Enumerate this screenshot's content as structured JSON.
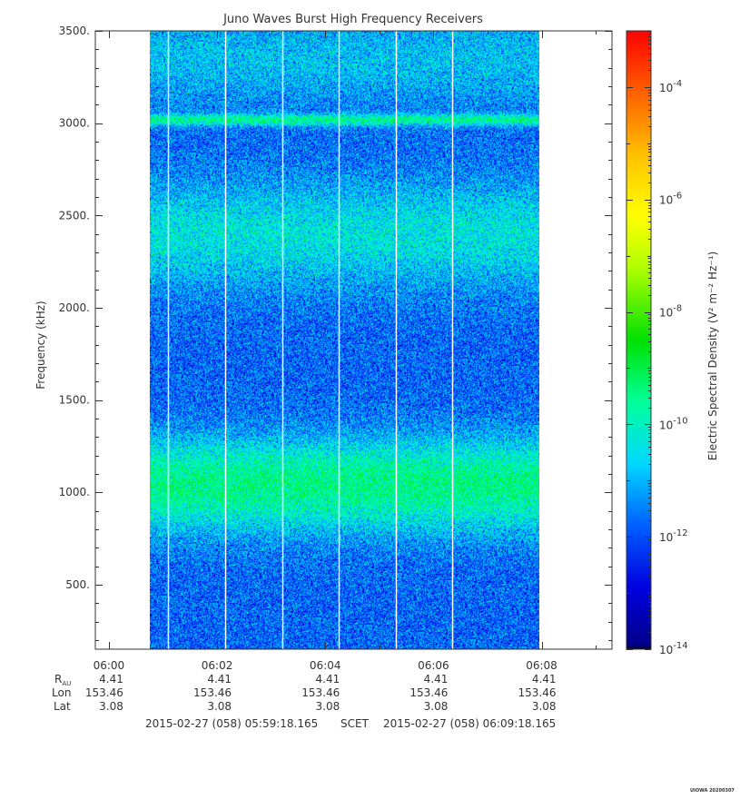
{
  "chart_data": {
    "type": "heatmap",
    "title": "Juno Waves Burst High Frequency Receivers",
    "xlabel": "",
    "ylabel": "Frequency (kHz)",
    "colorbar_label": "Electric Spectral Density (V² m⁻² Hz⁻¹)",
    "x_ticks": [
      "06:00",
      "06:02",
      "06:04",
      "06:06",
      "06:08"
    ],
    "x_range_minutes": [
      -0.25,
      9.3
    ],
    "ylim": [
      150,
      3500
    ],
    "y_ticks": [
      500,
      1000,
      1500,
      2000,
      2500,
      3000,
      3500
    ],
    "y_tick_labels": [
      "500.",
      "1000.",
      "1500.",
      "2000.",
      "2500.",
      "3000.",
      "3500."
    ],
    "colorbar_log_range": [
      -14,
      -3
    ],
    "colorbar_ticks": [
      -14,
      -12,
      -10,
      -8,
      -6,
      -4
    ],
    "colorbar_tick_labels": [
      "10",
      "10",
      "10",
      "10",
      "10",
      "10"
    ],
    "colorbar_tick_exponents": [
      "-14",
      "-12",
      "-10",
      "-8",
      "-6",
      "-4"
    ],
    "data_time_range_minutes": [
      0.75,
      7.95
    ],
    "data_gap_times_minutes": [
      1.1,
      2.15,
      3.2,
      4.25,
      5.3,
      6.35
    ],
    "frequency_bands": [
      {
        "center_khz": 3020,
        "width_khz": 30,
        "level": -10.6
      },
      {
        "center_khz": 2400,
        "width_khz": 280,
        "level": -11.1
      },
      {
        "center_khz": 980,
        "width_khz": 220,
        "level": -10.9
      },
      {
        "center_khz": 1150,
        "width_khz": 200,
        "level": -11.4
      },
      {
        "center_khz": 3350,
        "width_khz": 250,
        "level": -11.5
      }
    ],
    "background_level": -12.2,
    "ephemeris": {
      "labels": {
        "rau": "R",
        "rau_sub": "AU",
        "lon": "Lon",
        "lat": "Lat"
      },
      "rau": [
        "4.41",
        "4.41",
        "4.41",
        "4.41",
        "4.41"
      ],
      "lon": [
        "153.46",
        "153.46",
        "153.46",
        "153.46",
        "153.46"
      ],
      "lat": [
        "3.08",
        "3.08",
        "3.08",
        "3.08",
        "3.08"
      ]
    },
    "time_range": {
      "start": "2015-02-27 (058) 05:59:18.165",
      "scet": "SCET",
      "end": "2015-02-27 (058) 06:09:18.165"
    },
    "footer": "UIOWA 20200307"
  }
}
